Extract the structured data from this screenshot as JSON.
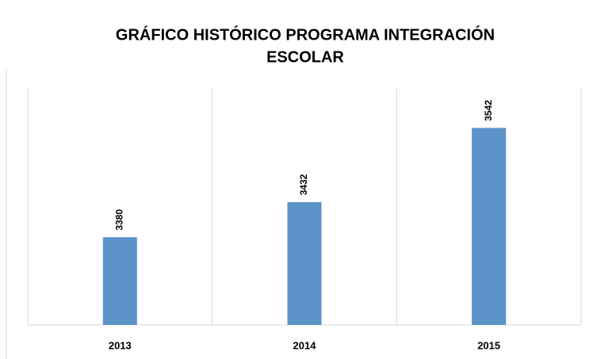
{
  "chart_data": {
    "type": "bar",
    "title": [
      "GRÁFICO  HISTÓRICO PROGRAMA INTEGRACIÓN",
      "ESCOLAR"
    ],
    "categories": [
      "2013",
      "2014",
      "2015"
    ],
    "values": [
      3380,
      3432,
      3542
    ],
    "color": "#5b93c9",
    "ylim": [
      3250,
      3600
    ]
  }
}
